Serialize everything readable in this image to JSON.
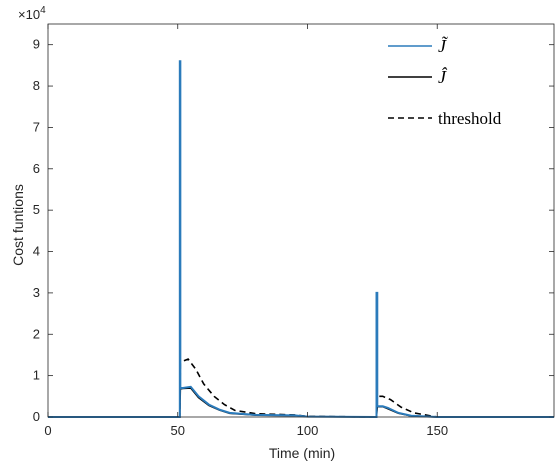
{
  "chart_data": {
    "type": "line",
    "title": "",
    "xlabel": "Time (min)",
    "ylabel": "Cost funtions",
    "exponent_label": "×10",
    "exponent_power": "4",
    "xlim": [
      0,
      195
    ],
    "ylim": [
      0,
      95000
    ],
    "xticks": [
      0,
      50,
      100,
      150
    ],
    "yticks": [
      0,
      10000,
      20000,
      30000,
      40000,
      50000,
      60000,
      70000,
      80000,
      90000
    ],
    "ytick_labels": [
      "0",
      "1",
      "2",
      "3",
      "4",
      "5",
      "6",
      "7",
      "8",
      "9"
    ],
    "grid": false,
    "legend_position": "top-right",
    "colors": {
      "j_tilde": "#2b7bbb",
      "j_hat": "#000000",
      "threshold": "#000000"
    },
    "series": [
      {
        "name": "J̃",
        "legend_symbol": "J̃",
        "style": "solid",
        "x": [
          0,
          50.8,
          50.8,
          51.0,
          51.0,
          52,
          55,
          58,
          62,
          66,
          70,
          80,
          95,
          100,
          126.6,
          126.6,
          126.9,
          126.9,
          129,
          131,
          135,
          140,
          150,
          195
        ],
        "y": [
          0,
          0,
          86000,
          86000,
          7000,
          7000,
          7300,
          5000,
          3000,
          1800,
          1000,
          500,
          400,
          100,
          0,
          30000,
          30000,
          2600,
          2600,
          2200,
          1000,
          300,
          0,
          0
        ]
      },
      {
        "name": "Ĵ",
        "legend_symbol": "Ĵ",
        "style": "solid",
        "x": [
          0,
          50.8,
          51.0,
          52,
          55,
          58,
          62,
          66,
          70,
          80,
          95,
          100,
          126.6,
          126.9,
          129,
          131,
          135,
          140,
          150,
          195
        ],
        "y": [
          0,
          0,
          6800,
          6900,
          7000,
          4700,
          2800,
          1700,
          900,
          450,
          350,
          100,
          0,
          2500,
          2500,
          2000,
          900,
          250,
          0,
          0
        ]
      },
      {
        "name": "threshold",
        "legend_symbol": "threshold",
        "style": "dashed",
        "x": [
          0,
          50.8,
          51.0,
          52,
          54,
          57,
          60,
          64,
          68,
          72,
          80,
          95,
          100,
          126.6,
          126.9,
          129,
          132,
          136,
          141,
          150,
          195
        ],
        "y": [
          0,
          0,
          13000,
          13500,
          14000,
          11500,
          8000,
          5000,
          3000,
          1600,
          800,
          500,
          150,
          0,
          5000,
          5000,
          4200,
          2400,
          1000,
          0,
          0
        ]
      }
    ]
  }
}
